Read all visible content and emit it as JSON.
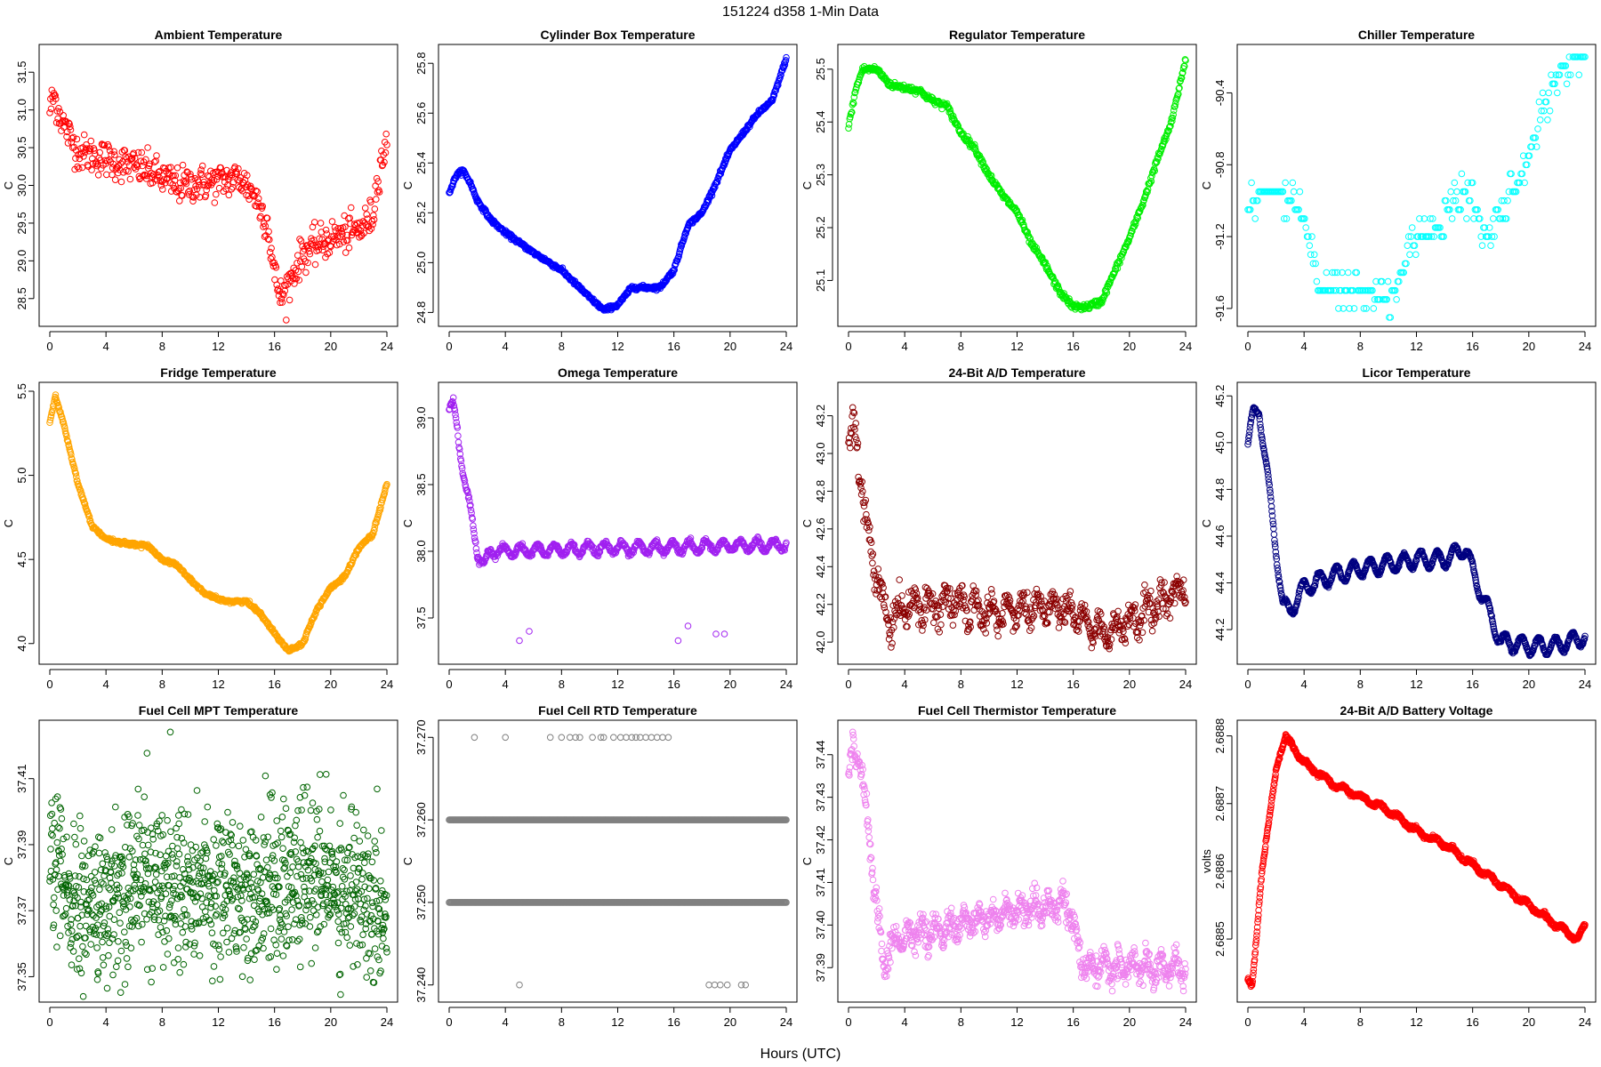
{
  "figure": {
    "title": "151224   d358   1-Min Data",
    "xlabel": "Hours (UTC)"
  },
  "chart_data": [
    {
      "type": "scatter",
      "title": "Ambient Temperature",
      "ylabel": "C",
      "color": "#ff0000",
      "xlim": [
        0,
        24
      ],
      "ylim": [
        28.25,
        31.75
      ],
      "xticks": [
        "0",
        "4",
        "8",
        "12",
        "16",
        "20",
        "24"
      ],
      "yticks": [
        "28.5",
        "29.0",
        "29.5",
        "30.0",
        "30.5",
        "31.0",
        "31.5"
      ],
      "noise": 0.12,
      "density": 500,
      "series": [
        [
          0,
          31.0
        ],
        [
          0.3,
          31.2
        ],
        [
          0.6,
          31.0
        ],
        [
          1,
          30.8
        ],
        [
          2,
          30.45
        ],
        [
          3,
          30.4
        ],
        [
          5,
          30.3
        ],
        [
          7,
          30.2
        ],
        [
          9,
          30.0
        ],
        [
          12,
          30.05
        ],
        [
          13.5,
          30.1
        ],
        [
          14.5,
          29.9
        ],
        [
          15.5,
          29.5
        ],
        [
          16,
          28.8
        ],
        [
          16.5,
          28.5
        ],
        [
          17,
          28.7
        ],
        [
          18,
          29.1
        ],
        [
          19,
          29.2
        ],
        [
          20,
          29.3
        ],
        [
          21,
          29.35
        ],
        [
          22,
          29.4
        ],
        [
          23,
          29.6
        ],
        [
          23.5,
          30.3
        ],
        [
          24,
          30.5
        ]
      ]
    },
    {
      "type": "scatter",
      "title": "Cylinder Box Temperature",
      "ylabel": "C",
      "color": "#0000ff",
      "xlim": [
        0,
        24
      ],
      "ylim": [
        24.78,
        25.84
      ],
      "xticks": [
        "0",
        "4",
        "8",
        "12",
        "16",
        "20",
        "24"
      ],
      "yticks": [
        "24.8",
        "25.0",
        "25.2",
        "25.4",
        "25.6",
        "25.8"
      ],
      "noise": 0.004,
      "density": 700,
      "series": [
        [
          0,
          25.28
        ],
        [
          0.5,
          25.35
        ],
        [
          1,
          25.37
        ],
        [
          1.5,
          25.32
        ],
        [
          2,
          25.25
        ],
        [
          3,
          25.17
        ],
        [
          4,
          25.12
        ],
        [
          6,
          25.04
        ],
        [
          8,
          24.97
        ],
        [
          10,
          24.86
        ],
        [
          11,
          24.81
        ],
        [
          12,
          24.83
        ],
        [
          13,
          24.9
        ],
        [
          15,
          24.9
        ],
        [
          16,
          24.97
        ],
        [
          17,
          25.15
        ],
        [
          18,
          25.2
        ],
        [
          19,
          25.32
        ],
        [
          20,
          25.45
        ],
        [
          22,
          25.6
        ],
        [
          23,
          25.65
        ],
        [
          24,
          25.82
        ]
      ]
    },
    {
      "type": "scatter",
      "title": "Regulator Temperature",
      "ylabel": "C",
      "color": "#00ee00",
      "xlim": [
        0,
        24
      ],
      "ylim": [
        25.03,
        25.53
      ],
      "xticks": [
        "0",
        "4",
        "8",
        "12",
        "16",
        "20",
        "24"
      ],
      "yticks": [
        "25.1",
        "25.2",
        "25.3",
        "25.4",
        "25.5"
      ],
      "noise": 0.003,
      "density": 600,
      "series": [
        [
          0,
          25.39
        ],
        [
          0.5,
          25.46
        ],
        [
          1,
          25.5
        ],
        [
          2,
          25.5
        ],
        [
          3,
          25.47
        ],
        [
          5,
          25.46
        ],
        [
          6,
          25.44
        ],
        [
          7,
          25.43
        ],
        [
          8,
          25.38
        ],
        [
          9,
          25.35
        ],
        [
          10,
          25.3
        ],
        [
          11,
          25.26
        ],
        [
          12,
          25.23
        ],
        [
          13,
          25.17
        ],
        [
          14,
          25.13
        ],
        [
          15,
          25.08
        ],
        [
          16,
          25.05
        ],
        [
          17,
          25.05
        ],
        [
          18,
          25.06
        ],
        [
          19,
          25.12
        ],
        [
          20,
          25.18
        ],
        [
          21,
          25.25
        ],
        [
          22,
          25.33
        ],
        [
          23,
          25.4
        ],
        [
          24,
          25.52
        ]
      ]
    },
    {
      "type": "scatter",
      "title": "Chiller Temperature",
      "ylabel": "C",
      "color": "#00ffff",
      "xlim": [
        0,
        24
      ],
      "ylim": [
        -91.65,
        -90.18
      ],
      "xticks": [
        "0",
        "4",
        "8",
        "12",
        "16",
        "20",
        "24"
      ],
      "yticks": [
        "-91.6",
        "-91.2",
        "-90.8",
        "-90.4"
      ],
      "noise": 0.0,
      "quantum": 0.05,
      "density": 280,
      "jitter": 0.06,
      "series": [
        [
          0,
          -91.05
        ],
        [
          1,
          -90.95
        ],
        [
          2,
          -90.95
        ],
        [
          3,
          -91.0
        ],
        [
          4,
          -91.1
        ],
        [
          4.5,
          -91.3
        ],
        [
          5,
          -91.5
        ],
        [
          8,
          -91.5
        ],
        [
          10,
          -91.55
        ],
        [
          11,
          -91.4
        ],
        [
          12,
          -91.2
        ],
        [
          13,
          -91.2
        ],
        [
          14,
          -91.1
        ],
        [
          15,
          -90.95
        ],
        [
          16,
          -91.0
        ],
        [
          17,
          -91.2
        ],
        [
          18,
          -91.0
        ],
        [
          19,
          -90.95
        ],
        [
          20,
          -90.75
        ],
        [
          21,
          -90.5
        ],
        [
          22,
          -90.3
        ],
        [
          23,
          -90.2
        ],
        [
          24,
          -90.2
        ]
      ]
    },
    {
      "type": "scatter",
      "title": "Fridge Temperature",
      "ylabel": "C",
      "color": "#ffa500",
      "xlim": [
        0,
        24
      ],
      "ylim": [
        3.93,
        5.5
      ],
      "xticks": [
        "0",
        "4",
        "8",
        "12",
        "16",
        "20",
        "24"
      ],
      "yticks": [
        "4.0",
        "4.5",
        "5.0",
        "5.5"
      ],
      "noise": 0.005,
      "density": 700,
      "series": [
        [
          0,
          5.32
        ],
        [
          0.4,
          5.47
        ],
        [
          1,
          5.3
        ],
        [
          2,
          4.95
        ],
        [
          3,
          4.7
        ],
        [
          4,
          4.62
        ],
        [
          5,
          4.6
        ],
        [
          7,
          4.58
        ],
        [
          8,
          4.5
        ],
        [
          9,
          4.47
        ],
        [
          10,
          4.38
        ],
        [
          11,
          4.3
        ],
        [
          12,
          4.26
        ],
        [
          13,
          4.25
        ],
        [
          14,
          4.25
        ],
        [
          15,
          4.18
        ],
        [
          16,
          4.06
        ],
        [
          17,
          3.96
        ],
        [
          18,
          4.0
        ],
        [
          19,
          4.2
        ],
        [
          20,
          4.33
        ],
        [
          21,
          4.4
        ],
        [
          22,
          4.57
        ],
        [
          23,
          4.65
        ],
        [
          24,
          4.95
        ]
      ]
    },
    {
      "type": "scatter",
      "title": "Omega Temperature",
      "ylabel": "C",
      "color": "#a020f0",
      "xlim": [
        0,
        24
      ],
      "ylim": [
        37.22,
        39.2
      ],
      "xticks": [
        "0",
        "4",
        "8",
        "12",
        "16",
        "20",
        "24"
      ],
      "yticks": [
        "37.5",
        "38.0",
        "38.5",
        "39.0"
      ],
      "noise": 0.01,
      "density": 650,
      "wave": 0.04,
      "wavePeriod": 1.2,
      "series": [
        [
          0,
          39.05
        ],
        [
          0.3,
          39.1
        ],
        [
          1,
          38.6
        ],
        [
          2,
          38.0
        ],
        [
          2.5,
          37.9
        ],
        [
          3,
          38.0
        ],
        [
          24,
          38.05
        ]
      ],
      "outliers": [
        [
          5,
          37.33
        ],
        [
          5.7,
          37.4
        ],
        [
          16.3,
          37.33
        ],
        [
          17,
          37.44
        ],
        [
          19,
          37.38
        ],
        [
          19.6,
          37.38
        ]
      ]
    },
    {
      "type": "scatter",
      "title": "24-Bit A/D Temperature",
      "ylabel": "C",
      "color": "#8b0000",
      "xlim": [
        0,
        24
      ],
      "ylim": [
        41.93,
        43.33
      ],
      "xticks": [
        "0",
        "4",
        "8",
        "12",
        "16",
        "20",
        "24"
      ],
      "yticks": [
        "42.0",
        "42.2",
        "42.4",
        "42.6",
        "42.8",
        "43.0",
        "43.2"
      ],
      "noise": 0.04,
      "density": 650,
      "wave": 0.06,
      "wavePeriod": 1.1,
      "series": [
        [
          0,
          43.0
        ],
        [
          0.4,
          43.15
        ],
        [
          1,
          42.8
        ],
        [
          1.5,
          42.5
        ],
        [
          2.5,
          42.2
        ],
        [
          3,
          42.1
        ],
        [
          4,
          42.2
        ],
        [
          8,
          42.2
        ],
        [
          10,
          42.15
        ],
        [
          14,
          42.2
        ],
        [
          16,
          42.15
        ],
        [
          17,
          42.1
        ],
        [
          18,
          42.05
        ],
        [
          20,
          42.1
        ],
        [
          22,
          42.2
        ],
        [
          24,
          42.3
        ]
      ]
    },
    {
      "type": "scatter",
      "title": "Licor Temperature",
      "ylabel": "C",
      "color": "#000080",
      "xlim": [
        0,
        24
      ],
      "ylim": [
        44.09,
        45.22
      ],
      "xticks": [
        "0",
        "4",
        "8",
        "12",
        "16",
        "20",
        "24"
      ],
      "yticks": [
        "44.2",
        "44.4",
        "44.6",
        "44.8",
        "45.0",
        "45.2"
      ],
      "noise": 0.003,
      "density": 800,
      "wave": 0.035,
      "wavePeriod": 1.2,
      "series": [
        [
          0,
          44.99
        ],
        [
          0.4,
          45.12
        ],
        [
          0.8,
          45.15
        ],
        [
          1.5,
          44.8
        ],
        [
          2.5,
          44.3
        ],
        [
          3,
          44.28
        ],
        [
          4,
          44.38
        ],
        [
          6,
          44.43
        ],
        [
          8,
          44.46
        ],
        [
          10,
          44.48
        ],
        [
          12,
          44.5
        ],
        [
          14,
          44.5
        ],
        [
          15.5,
          44.55
        ],
        [
          16,
          44.45
        ],
        [
          17,
          44.3
        ],
        [
          18,
          44.15
        ],
        [
          19,
          44.14
        ],
        [
          20,
          44.13
        ],
        [
          22,
          44.13
        ],
        [
          24,
          44.17
        ]
      ]
    },
    {
      "type": "scatter",
      "title": "Fuel Cell MPT Temperature",
      "ylabel": "C",
      "color": "#006400",
      "xlim": [
        0,
        24
      ],
      "ylim": [
        37.345,
        37.425
      ],
      "xticks": [
        "0",
        "4",
        "8",
        "12",
        "16",
        "20",
        "24"
      ],
      "yticks": [
        "37.35",
        "37.37",
        "37.39",
        "37.41"
      ],
      "noise": 0.012,
      "density": 1100,
      "series": [
        [
          0,
          37.385
        ],
        [
          0.5,
          37.383
        ],
        [
          1,
          37.375
        ],
        [
          2,
          37.37
        ],
        [
          3,
          37.372
        ],
        [
          4,
          37.37
        ],
        [
          6,
          37.38
        ],
        [
          10,
          37.378
        ],
        [
          14,
          37.376
        ],
        [
          18,
          37.38
        ],
        [
          22,
          37.377
        ],
        [
          24,
          37.37
        ]
      ]
    },
    {
      "type": "scatter",
      "title": "Fuel Cell RTD Temperature",
      "ylabel": "C",
      "color": "#808080",
      "xlim": [
        0,
        24
      ],
      "ylim": [
        37.239,
        37.271
      ],
      "xticks": [
        "0",
        "4",
        "8",
        "12",
        "16",
        "20",
        "24"
      ],
      "yticks": [
        "37.240",
        "37.250",
        "37.260",
        "37.270"
      ],
      "bands": [
        [
          37.26,
          0,
          24,
          480
        ],
        [
          37.25,
          0,
          24,
          430
        ]
      ],
      "outliers": [
        [
          1.8,
          37.27
        ],
        [
          4.0,
          37.27
        ],
        [
          7.2,
          37.27
        ],
        [
          8.0,
          37.27
        ],
        [
          8.6,
          37.27
        ],
        [
          9.0,
          37.27
        ],
        [
          9.3,
          37.27
        ],
        [
          10.2,
          37.27
        ],
        [
          10.8,
          37.27
        ],
        [
          11.0,
          37.27
        ],
        [
          11.7,
          37.27
        ],
        [
          12.2,
          37.27
        ],
        [
          12.6,
          37.27
        ],
        [
          13.0,
          37.27
        ],
        [
          13.3,
          37.27
        ],
        [
          13.6,
          37.27
        ],
        [
          14.0,
          37.27
        ],
        [
          14.4,
          37.27
        ],
        [
          14.8,
          37.27
        ],
        [
          15.2,
          37.27
        ],
        [
          15.6,
          37.27
        ],
        [
          5.0,
          37.24
        ],
        [
          18.5,
          37.24
        ],
        [
          18.9,
          37.24
        ],
        [
          19.3,
          37.24
        ],
        [
          19.8,
          37.24
        ],
        [
          20.8,
          37.24
        ],
        [
          21.1,
          37.24
        ]
      ]
    },
    {
      "type": "scatter",
      "title": "Fuel Cell Thermistor Temperature",
      "ylabel": "C",
      "color": "#ee82ee",
      "xlim": [
        0,
        24
      ],
      "ylim": [
        37.384,
        37.446
      ],
      "xticks": [
        "0",
        "4",
        "8",
        "12",
        "16",
        "20",
        "24"
      ],
      "yticks": [
        "37.39",
        "37.40",
        "37.41",
        "37.42",
        "37.43",
        "37.44"
      ],
      "noise": 0.0015,
      "density": 800,
      "wave": 0.002,
      "wavePeriod": 1.0,
      "series": [
        [
          0,
          37.435
        ],
        [
          0.3,
          37.44
        ],
        [
          0.8,
          37.44
        ],
        [
          1.5,
          37.42
        ],
        [
          2,
          37.405
        ],
        [
          2.5,
          37.39
        ],
        [
          3,
          37.395
        ],
        [
          4,
          37.398
        ],
        [
          6,
          37.398
        ],
        [
          8,
          37.4
        ],
        [
          10,
          37.402
        ],
        [
          12,
          37.403
        ],
        [
          14,
          37.404
        ],
        [
          15,
          37.406
        ],
        [
          15.5,
          37.405
        ],
        [
          16,
          37.4
        ],
        [
          16.5,
          37.392
        ],
        [
          17,
          37.39
        ],
        [
          19,
          37.39
        ],
        [
          22,
          37.39
        ],
        [
          24,
          37.39
        ]
      ]
    },
    {
      "type": "scatter",
      "title": "24-Bit A/D Battery Voltage",
      "ylabel": "volts",
      "color": "#ff0000",
      "xlim": [
        0,
        24
      ],
      "ylim": [
        2.68842,
        2.68881
      ],
      "xticks": [
        "0",
        "4",
        "8",
        "12",
        "16",
        "20",
        "24"
      ],
      "yticks": [
        "2.6885",
        "2.6886",
        "2.6887",
        "2.6888"
      ],
      "noise": 1.5e-06,
      "density": 1000,
      "wave": 3.5e-06,
      "wavePeriod": 1.3,
      "waveStart": 3,
      "series": [
        [
          0,
          2.68844
        ],
        [
          0.3,
          2.68843
        ],
        [
          0.6,
          2.6885
        ],
        [
          1,
          2.6886
        ],
        [
          2,
          2.68875
        ],
        [
          2.7,
          2.6888
        ],
        [
          4,
          2.68876
        ],
        [
          6,
          2.68873
        ],
        [
          8,
          2.68871
        ],
        [
          10,
          2.68869
        ],
        [
          12,
          2.68866
        ],
        [
          14,
          2.68864
        ],
        [
          16,
          2.68861
        ],
        [
          18,
          2.68858
        ],
        [
          20,
          2.68855
        ],
        [
          22,
          2.68852
        ],
        [
          23.5,
          2.6885
        ],
        [
          24,
          2.68852
        ]
      ]
    }
  ]
}
